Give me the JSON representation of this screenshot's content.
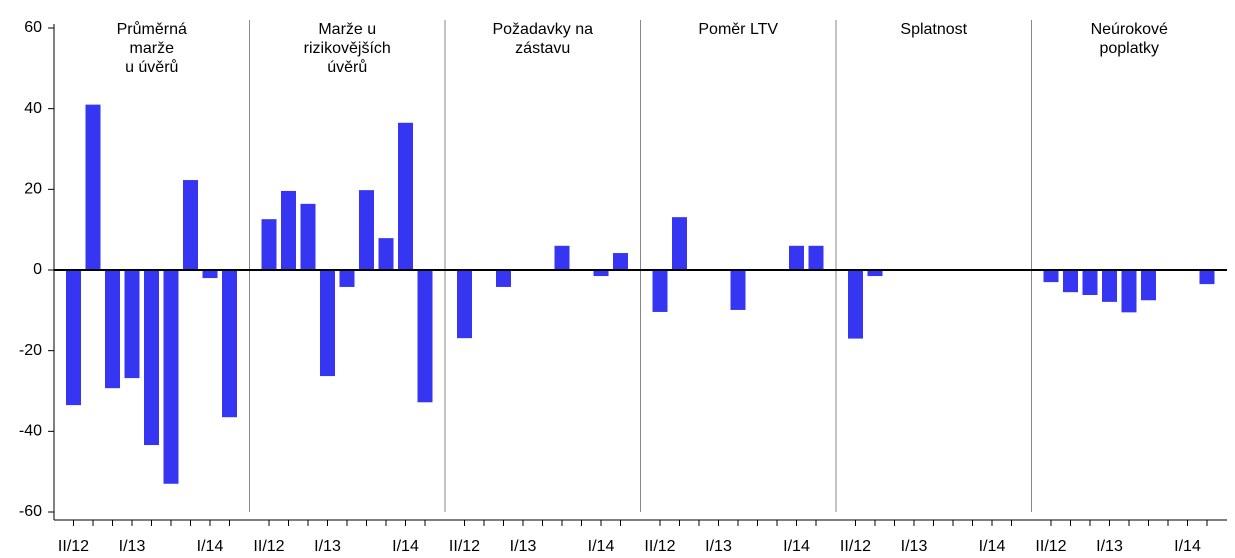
{
  "chart_data": {
    "type": "bar",
    "categories": [
      "II/12",
      null,
      null,
      "I/13",
      null,
      null,
      null,
      "I/14",
      null
    ],
    "color": "#3535f2",
    "ylim": [
      -60,
      60
    ],
    "yticks": [
      -60,
      -40,
      -20,
      0,
      20,
      40,
      60
    ],
    "panels": [
      {
        "title": [
          "Průměrná",
          "marže",
          "u úvěrů"
        ],
        "values": [
          -33.5,
          41,
          -29.3,
          -26.8,
          -43.4,
          -53,
          22.3,
          -2,
          -36.5
        ]
      },
      {
        "title": [
          "Marže u",
          "rizikovějších",
          "úvěrů"
        ],
        "values": [
          12.6,
          19.6,
          16.4,
          -26.3,
          -4.2,
          19.8,
          7.9,
          36.5,
          -32.8
        ]
      },
      {
        "title": [
          "Požadavky na",
          "zástavu"
        ],
        "values": [
          -16.9,
          0,
          -4.2,
          0,
          0,
          6,
          0,
          -1.5,
          4.2
        ]
      },
      {
        "title": [
          "Poměr LTV"
        ],
        "values": [
          -10.4,
          13.1,
          0,
          0,
          -9.9,
          0,
          0,
          6,
          6
        ]
      },
      {
        "title": [
          "Splatnost"
        ],
        "values": [
          -17,
          -1.5,
          0,
          0,
          0,
          0,
          0,
          0,
          0
        ]
      },
      {
        "title": [
          "Neúrokové",
          "poplatky"
        ],
        "values": [
          -3,
          -5.5,
          -6.2,
          -7.9,
          -10.5,
          -7.5,
          0,
          0,
          -3.5
        ]
      }
    ]
  }
}
